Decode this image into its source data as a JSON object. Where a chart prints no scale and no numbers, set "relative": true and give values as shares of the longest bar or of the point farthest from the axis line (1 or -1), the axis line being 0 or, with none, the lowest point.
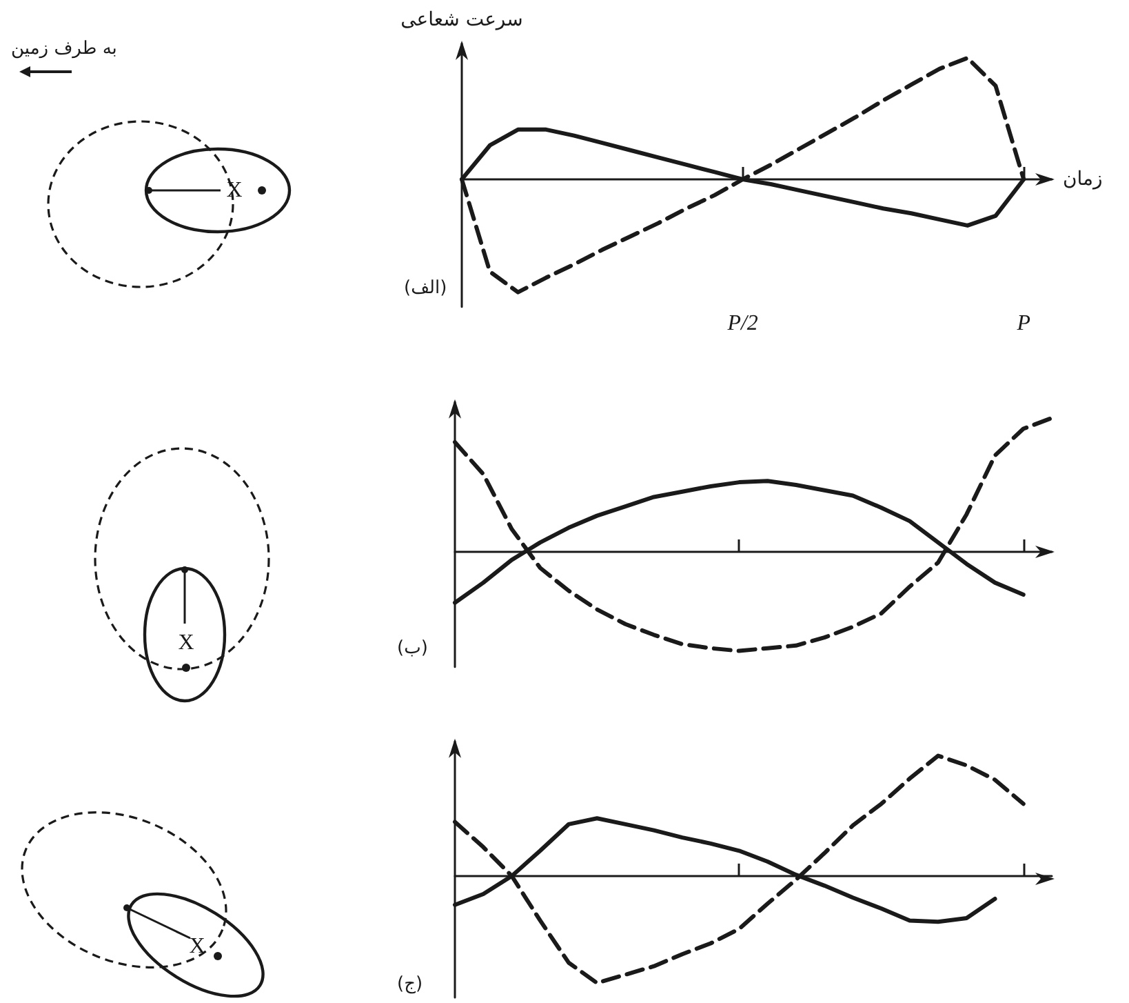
{
  "chart_data": [
    {
      "type": "line",
      "relative": true,
      "ylabel": "سرعت شعاعی",
      "xlabel": "زمان",
      "categories": [
        null,
        null,
        null,
        null,
        null,
        null,
        null,
        null,
        null,
        null,
        "P/2",
        null,
        null,
        null,
        null,
        null,
        null,
        null,
        null,
        null,
        "P",
        null
      ],
      "annotations": [
        "(الف)",
        "X",
        "به طرف زمین"
      ],
      "series": [
        {
          "color": "#1a1a1a",
          "line_style": "solid",
          "values": [
            0,
            0.28,
            0.41,
            0.41,
            0.36,
            0.3,
            0.24,
            0.18,
            0.12,
            0.06,
            0,
            -0.04,
            -0.09,
            -0.14,
            -0.19,
            -0.24,
            -0.28,
            -0.33,
            -0.38,
            -0.3,
            0,
            null
          ]
        },
        {
          "color": "#1a1a1a",
          "line_style": "dashed",
          "values": [
            0,
            -0.76,
            -0.93,
            -0.81,
            -0.7,
            -0.58,
            -0.47,
            -0.36,
            -0.24,
            -0.13,
            0,
            0.12,
            0.25,
            0.38,
            0.51,
            0.65,
            0.78,
            0.91,
            1,
            0.77,
            0,
            null
          ]
        }
      ]
    },
    {
      "type": "line",
      "relative": true,
      "categories": [
        null,
        null,
        null,
        null,
        null,
        null,
        null,
        null,
        null,
        null,
        null,
        null,
        null,
        null,
        null,
        null,
        null,
        null,
        null,
        null,
        null,
        null
      ],
      "annotations": [
        "(ب)",
        "X"
      ],
      "series": [
        {
          "color": "#1a1a1a",
          "line_style": "solid",
          "values": [
            -0.38,
            -0.23,
            -0.06,
            0.07,
            0.18,
            0.27,
            0.34,
            0.41,
            0.45,
            0.49,
            0.52,
            0.53,
            0.5,
            0.46,
            0.42,
            0.33,
            0.23,
            0.07,
            -0.09,
            -0.23,
            -0.32,
            null
          ]
        },
        {
          "color": "#1a1a1a",
          "line_style": "dashed",
          "values": [
            0.82,
            0.58,
            0.17,
            -0.12,
            -0.29,
            -0.43,
            -0.54,
            -0.62,
            -0.69,
            -0.72,
            -0.74,
            -0.72,
            -0.7,
            -0.64,
            -0.56,
            -0.46,
            -0.26,
            -0.08,
            0.28,
            0.72,
            0.92,
            1
          ]
        }
      ]
    },
    {
      "type": "line",
      "relative": true,
      "categories": [
        null,
        null,
        null,
        null,
        null,
        null,
        null,
        null,
        null,
        null,
        null,
        null,
        null,
        null,
        null,
        null,
        null,
        null,
        null,
        null,
        null,
        null
      ],
      "annotations": [
        "(ج)",
        "X"
      ],
      "series": [
        {
          "color": "#1a1a1a",
          "line_style": "solid",
          "values": [
            -0.24,
            -0.15,
            0,
            0.21,
            0.43,
            0.48,
            0.43,
            0.38,
            0.32,
            0.27,
            0.21,
            0.12,
            0.01,
            -0.08,
            -0.18,
            -0.27,
            -0.37,
            -0.38,
            -0.35,
            -0.19,
            null,
            null
          ]
        },
        {
          "color": "#1a1a1a",
          "line_style": "dashed",
          "values": [
            0.45,
            0.24,
            0,
            -0.37,
            -0.72,
            -0.89,
            -0.82,
            -0.75,
            -0.65,
            -0.56,
            -0.44,
            -0.23,
            -0.03,
            0.19,
            0.42,
            0.6,
            0.81,
            1,
            0.92,
            0.8,
            0.6,
            null
          ]
        }
      ]
    }
  ]
}
